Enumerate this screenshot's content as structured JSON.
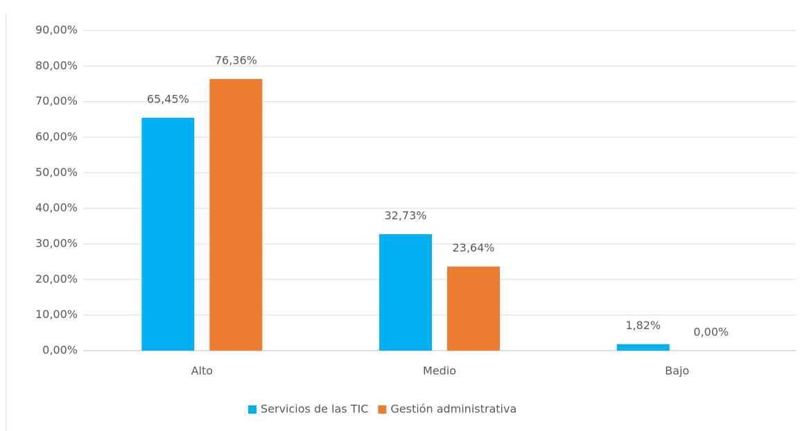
{
  "chart_data": {
    "type": "bar",
    "categories": [
      "Alto",
      "Medio",
      "Bajo"
    ],
    "series": [
      {
        "name": "Servicios de las TIC",
        "color": "#00b0f0",
        "values": [
          65.45,
          32.73,
          1.82
        ],
        "value_labels": [
          "65,45%",
          "32,73%",
          "1,82%"
        ]
      },
      {
        "name": "Gestión administrativa",
        "color": "#ed7d31",
        "values": [
          76.36,
          23.64,
          0
        ],
        "value_labels": [
          "76,36%",
          "23,64%",
          "0,00%"
        ]
      }
    ],
    "ylim": [
      0,
      90
    ],
    "yticks": [
      {
        "value": 0,
        "label": "0,00%"
      },
      {
        "value": 10,
        "label": "10,00%"
      },
      {
        "value": 20,
        "label": "20,00%"
      },
      {
        "value": 30,
        "label": "30,00%"
      },
      {
        "value": 40,
        "label": "40,00%"
      },
      {
        "value": 50,
        "label": "50,00%"
      },
      {
        "value": 60,
        "label": "60,00%"
      },
      {
        "value": 70,
        "label": "70,00%"
      },
      {
        "value": 80,
        "label": "80,00%"
      },
      {
        "value": 90,
        "label": "90,00%"
      }
    ],
    "grid": true,
    "legend": "bottom"
  }
}
